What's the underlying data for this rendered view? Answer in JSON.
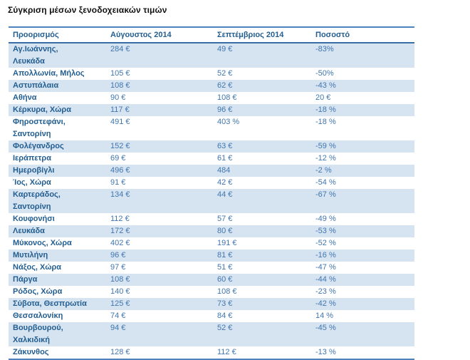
{
  "title": "Σύγκριση μέσων ξενοδοχειακών τιμών",
  "colors": {
    "border": "#4F81BD",
    "row_stripe": "#D6E4F2",
    "header_text": "#235E91",
    "destination_text": "#235E91",
    "value_text": "#4176AE"
  },
  "table": {
    "columns": [
      "Προορισμός",
      "Αύγουστος 2014",
      "Σεπτέμβριος 2014",
      "Ποσοστό"
    ],
    "rows": [
      {
        "destination": "Αγ.Ιωάννης, Λευκάδα",
        "august_2014": "284 €",
        "september_2014": "49 €",
        "percent": "-83%"
      },
      {
        "destination": "Απολλωνία, Μήλος",
        "august_2014": "105 €",
        "september_2014": "52 €",
        "percent": "-50%"
      },
      {
        "destination": "Αστυπάλαια",
        "august_2014": "108 €",
        "september_2014": "62 €",
        "percent": "-43 %"
      },
      {
        "destination": "Αθήνα",
        "august_2014": "90 €",
        "september_2014": "108 €",
        "percent": "20 €"
      },
      {
        "destination": "Κέρκυρα, Χώρα",
        "august_2014": "117 €",
        "september_2014": "96 €",
        "percent": "-18 %"
      },
      {
        "destination": "Φηροστεφάνι, Σαντορίνη",
        "august_2014": "491 €",
        "september_2014": "403 %",
        "percent": "-18 %"
      },
      {
        "destination": "Φολέγανδρος",
        "august_2014": "152 €",
        "september_2014": "63 €",
        "percent": "-59 %"
      },
      {
        "destination": "Ιεράπετρα",
        "august_2014": "69 €",
        "september_2014": "61 €",
        "percent": "-12 %"
      },
      {
        "destination": "Ημεροβίγλι",
        "august_2014": "496 €",
        "september_2014": "484",
        "percent": "-2 %"
      },
      {
        "destination": "Ίος, Χώρα",
        "august_2014": "91 €",
        "september_2014": "42 €",
        "percent": "-54 %"
      },
      {
        "destination": "Καρτεράδος, Σαντορίνη",
        "august_2014": "134 €",
        "september_2014": "44 €",
        "percent": "-67 %"
      },
      {
        "destination": "Κουφονήσι",
        "august_2014": "112 €",
        "september_2014": "57 €",
        "percent": "-49 %"
      },
      {
        "destination": "Λευκάδα",
        "august_2014": "172 €",
        "september_2014": "80 €",
        "percent": "-53 %"
      },
      {
        "destination": "Μύκονος, Χώρα",
        "august_2014": "402 €",
        "september_2014": "191 €",
        "percent": "-52 %"
      },
      {
        "destination": "Μυτιλήνη",
        "august_2014": "96 €",
        "september_2014": "81 €",
        "percent": "-16 %"
      },
      {
        "destination": "Νάξος, Χώρα",
        "august_2014": "97 €",
        "september_2014": "51 €",
        "percent": "-47 %"
      },
      {
        "destination": "Πάργα",
        "august_2014": "108 €",
        "september_2014": "60 €",
        "percent": "-44 %"
      },
      {
        "destination": "Ρόδος, Χώρα",
        "august_2014": "140 €",
        "september_2014": "108 €",
        "percent": "-23 %"
      },
      {
        "destination": "Σύβοτα, Θεσπρωτία",
        "august_2014": "125 €",
        "september_2014": "73 €",
        "percent": "-42 %"
      },
      {
        "destination": "Θεσσαλονίκη",
        "august_2014": "74 €",
        "september_2014": "84 €",
        "percent": "14 %"
      },
      {
        "destination": "Βουρβουρού, Χαλκιδική",
        "august_2014": "94 €",
        "september_2014": "52 €",
        "percent": "-45 %"
      },
      {
        "destination": "Ζάκυνθος",
        "august_2014": "128 €",
        "september_2014": "112 €",
        "percent": "-13 %"
      }
    ]
  }
}
